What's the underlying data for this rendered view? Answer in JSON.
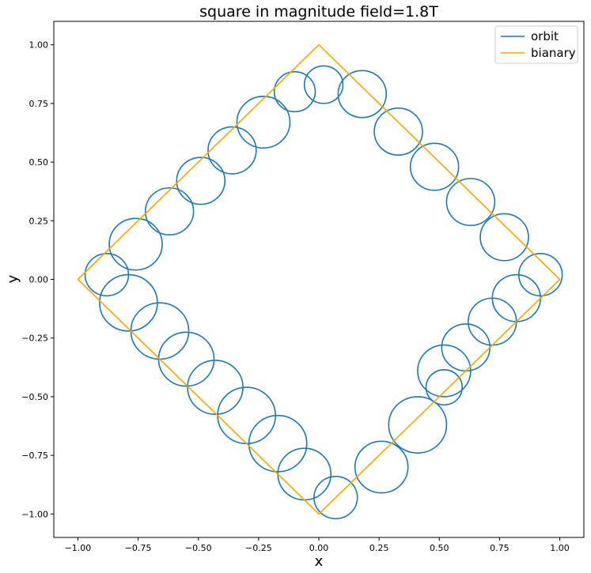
{
  "chart_data": {
    "type": "line",
    "title": "square in magnitude field=1.8T",
    "xlabel": "x",
    "ylabel": "y",
    "xlim": [
      -1.1,
      1.1
    ],
    "ylim": [
      -1.1,
      1.1
    ],
    "xticks": [
      -1.0,
      -0.75,
      -0.5,
      -0.25,
      0.0,
      0.25,
      0.5,
      0.75,
      1.0
    ],
    "yticks": [
      -1.0,
      -0.75,
      -0.5,
      -0.25,
      0.0,
      0.25,
      0.5,
      0.75,
      1.0
    ],
    "xtick_labels": [
      "−1.00",
      "−0.75",
      "−0.50",
      "−0.25",
      "0.00",
      "0.25",
      "0.50",
      "0.75",
      "1.00"
    ],
    "ytick_labels": [
      "−1.00",
      "−0.75",
      "−0.50",
      "−0.25",
      "0.00",
      "0.25",
      "0.50",
      "0.75",
      "1.00"
    ],
    "grid": false,
    "legend_position": "top-right",
    "series": [
      {
        "name": "orbit",
        "color": "#1f77b4",
        "loops": [
          {
            "cx": 0.02,
            "cy": 0.83,
            "r": 0.08
          },
          {
            "cx": -0.1,
            "cy": 0.8,
            "r": 0.085
          },
          {
            "cx": -0.23,
            "cy": 0.67,
            "r": 0.11
          },
          {
            "cx": -0.36,
            "cy": 0.55,
            "r": 0.1
          },
          {
            "cx": -0.49,
            "cy": 0.42,
            "r": 0.1
          },
          {
            "cx": -0.62,
            "cy": 0.29,
            "r": 0.1
          },
          {
            "cx": -0.76,
            "cy": 0.15,
            "r": 0.11
          },
          {
            "cx": -0.88,
            "cy": 0.02,
            "r": 0.09
          },
          {
            "cx": -0.79,
            "cy": -0.1,
            "r": 0.12
          },
          {
            "cx": -0.66,
            "cy": -0.22,
            "r": 0.12
          },
          {
            "cx": -0.55,
            "cy": -0.34,
            "r": 0.115
          },
          {
            "cx": -0.43,
            "cy": -0.46,
            "r": 0.115
          },
          {
            "cx": -0.3,
            "cy": -0.58,
            "r": 0.12
          },
          {
            "cx": -0.17,
            "cy": -0.7,
            "r": 0.12
          },
          {
            "cx": -0.06,
            "cy": -0.83,
            "r": 0.11
          },
          {
            "cx": 0.07,
            "cy": -0.93,
            "r": 0.09
          },
          {
            "cx": 0.26,
            "cy": -0.8,
            "r": 0.11
          },
          {
            "cx": 0.41,
            "cy": -0.62,
            "r": 0.12
          },
          {
            "cx": 0.52,
            "cy": -0.46,
            "r": 0.075
          },
          {
            "cx": 0.52,
            "cy": -0.39,
            "r": 0.11
          },
          {
            "cx": 0.61,
            "cy": -0.29,
            "r": 0.1
          },
          {
            "cx": 0.72,
            "cy": -0.18,
            "r": 0.1
          },
          {
            "cx": 0.82,
            "cy": -0.08,
            "r": 0.1
          },
          {
            "cx": 0.92,
            "cy": 0.02,
            "r": 0.09
          },
          {
            "cx": 0.77,
            "cy": 0.18,
            "r": 0.1
          },
          {
            "cx": 0.63,
            "cy": 0.33,
            "r": 0.1
          },
          {
            "cx": 0.48,
            "cy": 0.48,
            "r": 0.1
          },
          {
            "cx": 0.33,
            "cy": 0.63,
            "r": 0.1
          },
          {
            "cx": 0.18,
            "cy": 0.79,
            "r": 0.1
          }
        ]
      },
      {
        "name": "bianary",
        "color": "#ffa500",
        "points": [
          [
            -1,
            0
          ],
          [
            0,
            1
          ],
          [
            1,
            0
          ],
          [
            0,
            -1
          ],
          [
            -1,
            0
          ]
        ]
      }
    ]
  }
}
